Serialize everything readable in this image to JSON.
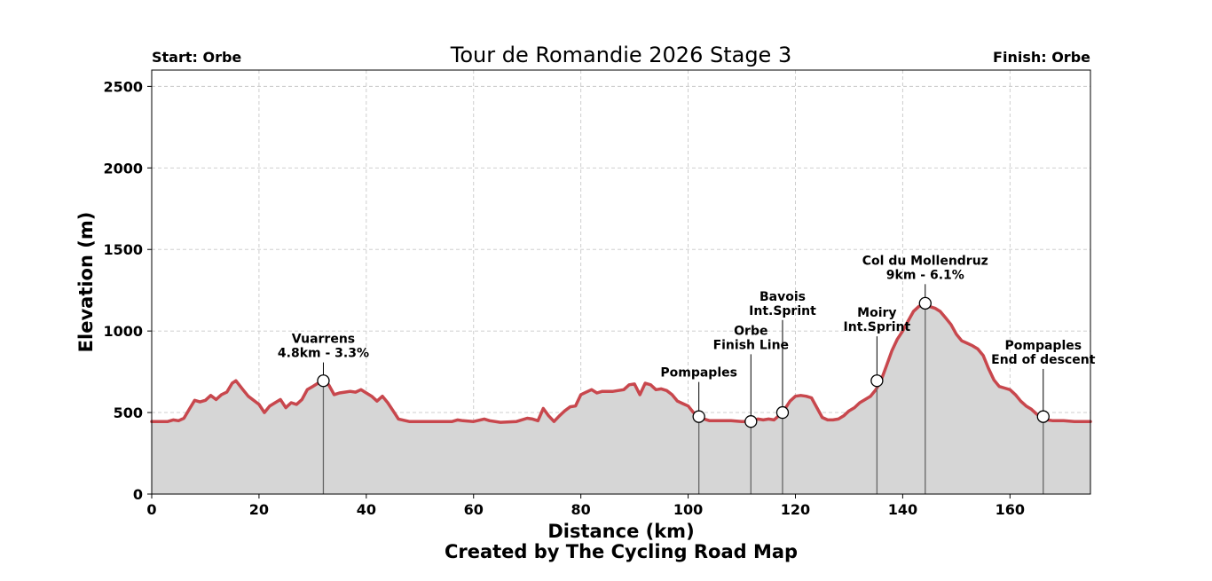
{
  "chart_data": {
    "type": "area",
    "title": "Tour de Romandie 2026 Stage 3",
    "start_label": "Start: Orbe",
    "finish_label": "Finish: Orbe",
    "xlabel": "Distance (km)",
    "ylabel": "Elevation (m)",
    "credit": "Created by The Cycling Road Map",
    "xlim": [
      0,
      175
    ],
    "ylim": [
      0,
      2600
    ],
    "xticks": [
      0,
      20,
      40,
      60,
      80,
      100,
      120,
      140,
      160
    ],
    "yticks": [
      0,
      500,
      1000,
      1500,
      2000,
      2500
    ],
    "grid": true,
    "line_color": "#c8474d",
    "fill_color": "#d6d6d6",
    "profile": {
      "x": [
        0,
        3,
        4,
        5,
        6,
        7,
        8,
        9,
        10,
        11,
        12,
        13,
        14,
        15,
        15.7,
        17,
        18,
        20,
        21,
        22,
        23,
        24,
        25,
        26,
        27,
        28,
        29,
        30,
        31,
        32,
        33,
        34,
        35,
        36,
        37,
        38,
        39,
        40,
        41,
        42,
        43,
        44,
        45,
        46,
        48,
        50,
        52,
        54,
        56,
        57,
        58,
        60,
        62,
        63,
        65,
        68,
        70,
        71,
        72,
        73,
        74,
        75,
        76,
        77,
        78,
        79,
        80,
        81,
        82,
        83,
        84,
        86,
        88,
        89,
        90,
        91,
        92,
        93,
        94,
        95,
        96,
        97,
        98,
        99,
        100,
        101,
        102,
        103,
        104,
        106,
        108,
        110,
        111.7,
        113,
        114,
        115,
        116,
        117.6,
        118,
        119,
        120,
        121,
        122,
        123,
        124,
        125,
        126,
        127,
        128,
        129,
        130,
        131,
        132,
        133,
        134,
        135,
        136,
        137,
        138,
        139,
        140,
        141,
        142,
        143,
        144.2,
        145,
        146,
        147,
        148,
        149,
        150,
        151,
        152,
        153,
        154,
        155,
        156,
        157,
        158,
        159,
        160,
        161,
        162,
        163,
        164,
        165,
        166.2,
        167,
        168,
        170,
        172,
        175
      ],
      "y": [
        445,
        445,
        455,
        450,
        465,
        520,
        575,
        565,
        575,
        605,
        580,
        610,
        625,
        680,
        695,
        640,
        600,
        550,
        500,
        540,
        560,
        580,
        530,
        560,
        550,
        580,
        640,
        660,
        680,
        695,
        670,
        610,
        620,
        625,
        630,
        625,
        640,
        620,
        600,
        570,
        600,
        560,
        510,
        460,
        445,
        445,
        445,
        445,
        445,
        455,
        450,
        445,
        460,
        450,
        440,
        445,
        465,
        460,
        450,
        525,
        480,
        445,
        480,
        510,
        535,
        540,
        610,
        625,
        640,
        620,
        630,
        630,
        640,
        670,
        675,
        610,
        680,
        670,
        640,
        645,
        635,
        610,
        570,
        555,
        540,
        500,
        475,
        460,
        450,
        450,
        450,
        445,
        445,
        460,
        455,
        460,
        455,
        500,
        520,
        570,
        600,
        605,
        600,
        590,
        530,
        470,
        455,
        455,
        460,
        480,
        510,
        530,
        560,
        580,
        600,
        640,
        700,
        790,
        880,
        950,
        1000,
        1060,
        1120,
        1150,
        1170,
        1150,
        1140,
        1120,
        1080,
        1040,
        980,
        940,
        925,
        910,
        890,
        850,
        770,
        700,
        660,
        650,
        640,
        610,
        570,
        540,
        520,
        490,
        475,
        455,
        450,
        450,
        445,
        445
      ]
    },
    "annotations": [
      {
        "x": 32,
        "y": 695,
        "label_y": 840,
        "lines": [
          "Vuarrens",
          "4.8km - 3.3%"
        ]
      },
      {
        "x": 102,
        "y": 475,
        "label_y": 720,
        "lines": [
          "Pompaples"
        ]
      },
      {
        "x": 111.7,
        "y": 445,
        "label_y": 890,
        "lines": [
          "Orbe",
          "Finish Line"
        ]
      },
      {
        "x": 117.6,
        "y": 500,
        "label_y": 1100,
        "lines": [
          "Bavois",
          "Int.Sprint"
        ]
      },
      {
        "x": 135.2,
        "y": 695,
        "label_y": 1000,
        "lines": [
          "Moiry",
          "Int.Sprint"
        ]
      },
      {
        "x": 144.2,
        "y": 1170,
        "label_y": 1320,
        "lines": [
          "Col du Mollendruz",
          "9km - 6.1%"
        ]
      },
      {
        "x": 166.2,
        "y": 475,
        "label_y": 800,
        "lines": [
          "Pompaples",
          "End of descent"
        ]
      }
    ]
  }
}
